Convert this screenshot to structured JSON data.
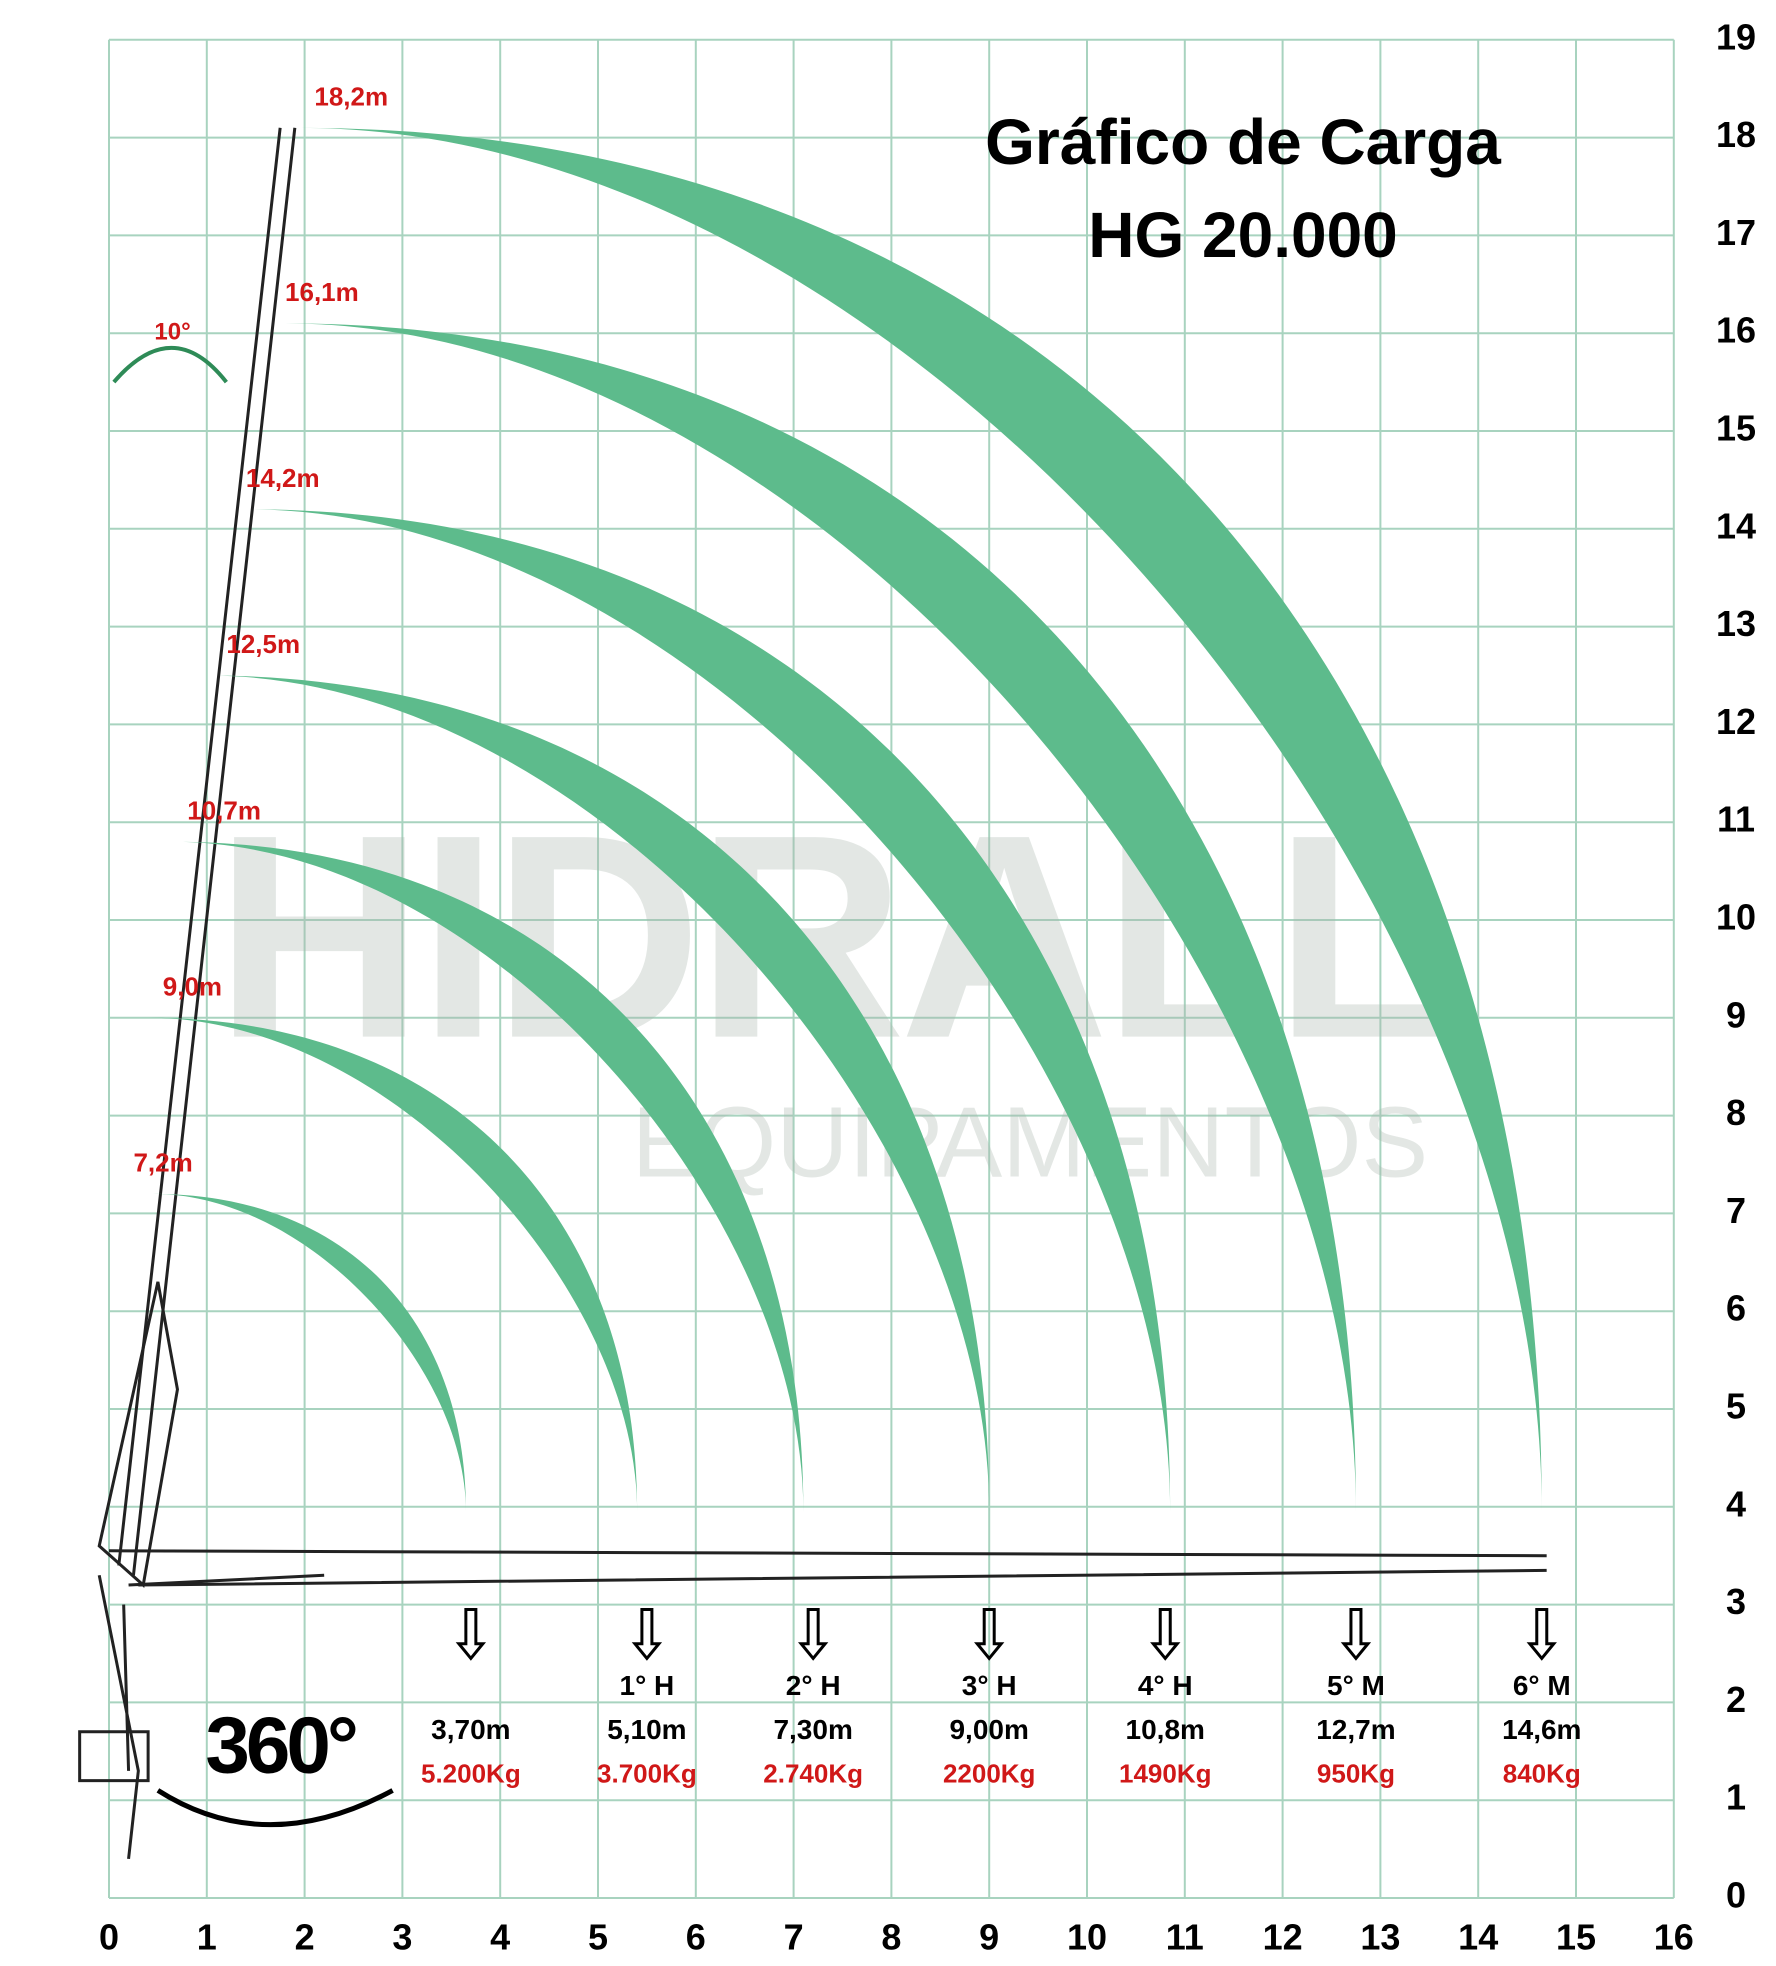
{
  "title": [
    "Gráfico de Carga",
    "HG 20.000"
  ],
  "watermark": {
    "brand": "HIDRALL",
    "sub": "EQUIPAMENTOS"
  },
  "rotation": "360°",
  "slew_angle": "10°",
  "axes": {
    "xticks": [
      0,
      1,
      2,
      3,
      4,
      5,
      6,
      7,
      8,
      9,
      10,
      11,
      12,
      13,
      14,
      15,
      16
    ],
    "yticks": [
      0,
      1,
      2,
      3,
      4,
      5,
      6,
      7,
      8,
      9,
      10,
      11,
      12,
      13,
      14,
      15,
      16,
      17,
      18,
      19
    ]
  },
  "reach_heights": [
    "18,2m",
    "16,1m",
    "14,2m",
    "12,5m",
    "10,7m",
    "9,0m",
    "7,2m"
  ],
  "loads": [
    {
      "reach": "3,70m",
      "load": "5.200Kg"
    },
    {
      "section": "1° H",
      "reach": "5,10m",
      "load": "3.700Kg"
    },
    {
      "section": "2° H",
      "reach": "7,30m",
      "load": "2.740Kg"
    },
    {
      "section": "3° H",
      "reach": "9,00m",
      "load": "2200Kg"
    },
    {
      "section": "4° H",
      "reach": "10,8m",
      "load": "1490Kg"
    },
    {
      "section": "5° M",
      "reach": "12,7m",
      "load": "950Kg"
    },
    {
      "section": "6° M",
      "reach": "14,6m",
      "load": "840Kg"
    }
  ]
}
